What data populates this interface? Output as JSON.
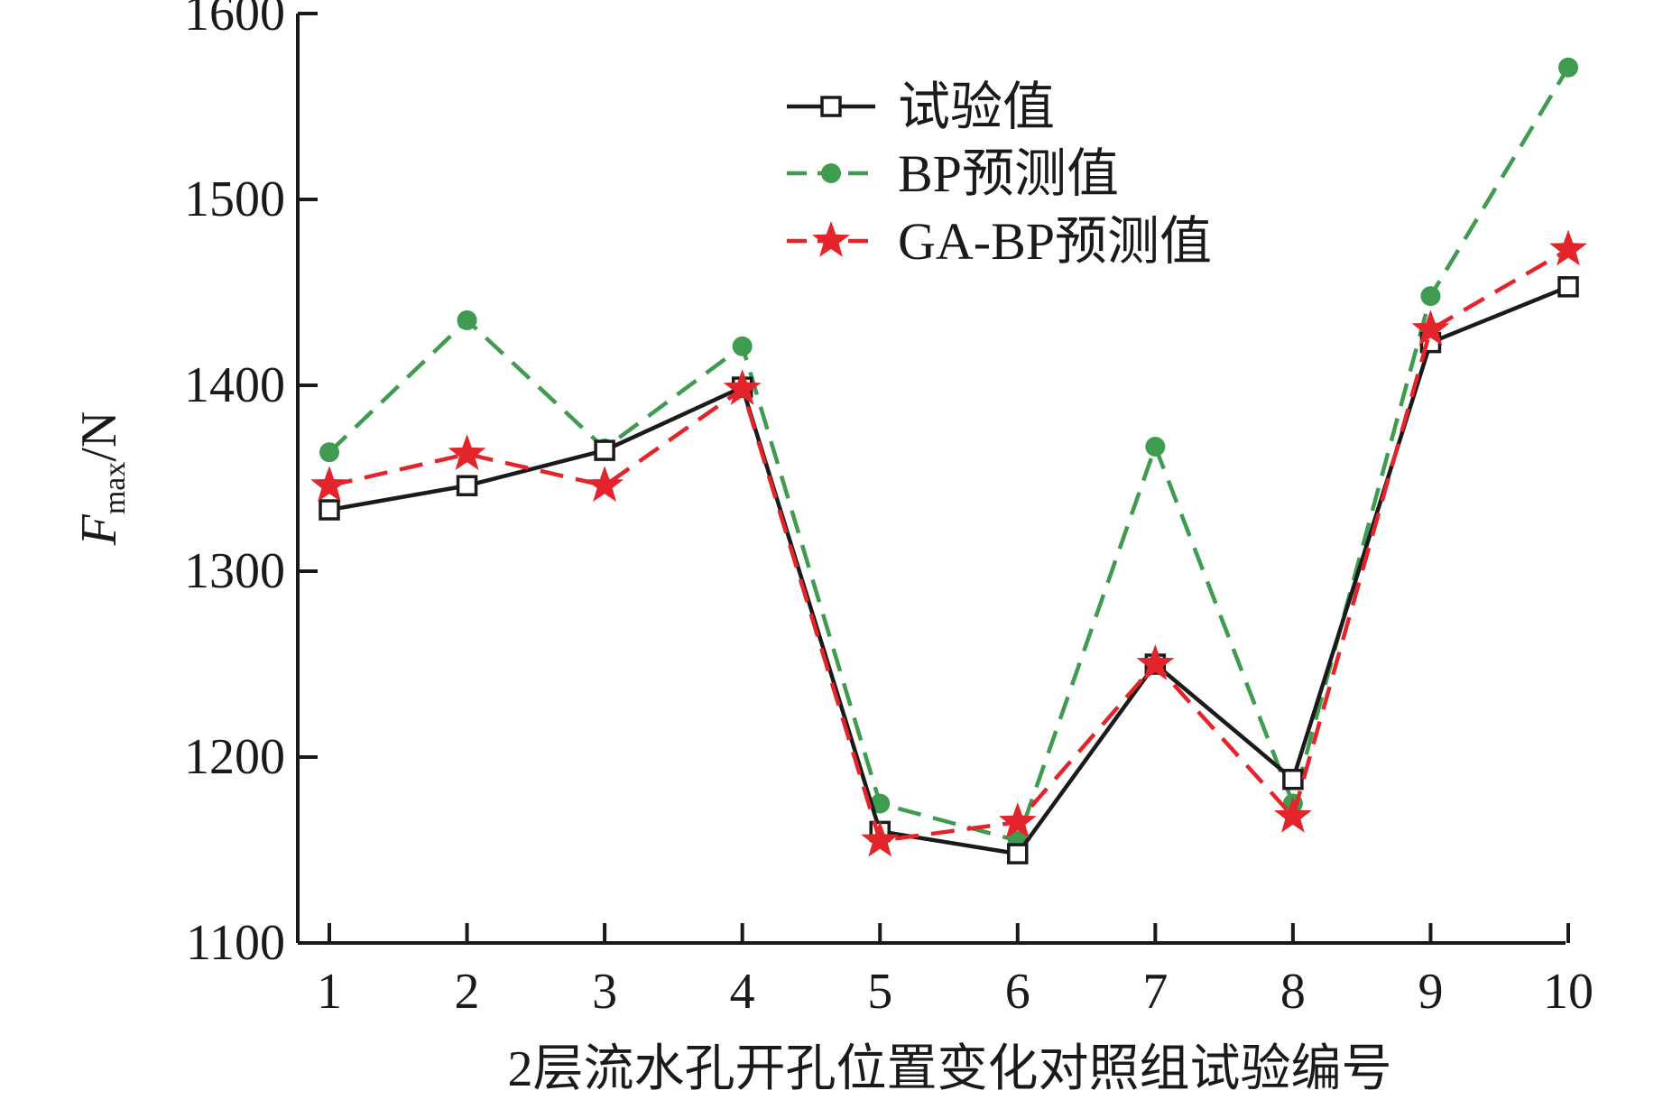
{
  "chart_data": {
    "type": "line",
    "xlabel": "2层流水孔开孔位置变化对照组试验编号",
    "ylabel_main": "F",
    "ylabel_sub": "max",
    "ylabel_unit": "/N",
    "x": [
      1,
      2,
      3,
      4,
      5,
      6,
      7,
      8,
      9,
      10
    ],
    "xticks": [
      "1",
      "2",
      "3",
      "4",
      "5",
      "6",
      "7",
      "8",
      "9",
      "10"
    ],
    "yticks": [
      "1100",
      "1200",
      "1300",
      "1400",
      "1500",
      "1600"
    ],
    "ylim": [
      1100,
      1600
    ],
    "grid": false,
    "legend_position": "top-right",
    "series": [
      {
        "name": "试验值",
        "color": "#1a1a1a",
        "line": "solid",
        "marker": "open-square",
        "values": [
          1333,
          1346,
          1365,
          1399,
          1160,
          1148,
          1250,
          1188,
          1423,
          1453
        ]
      },
      {
        "name": "BP预测值",
        "color": "#3f9b4f",
        "line": "dashed",
        "marker": "filled-circle",
        "values": [
          1364,
          1435,
          1366,
          1421,
          1175,
          1155,
          1367,
          1175,
          1448,
          1571
        ]
      },
      {
        "name": "GA-BP预测值",
        "color": "#e3242b",
        "line": "dashed",
        "marker": "star",
        "values": [
          1346,
          1363,
          1346,
          1398,
          1155,
          1165,
          1250,
          1168,
          1430,
          1473
        ]
      }
    ]
  }
}
